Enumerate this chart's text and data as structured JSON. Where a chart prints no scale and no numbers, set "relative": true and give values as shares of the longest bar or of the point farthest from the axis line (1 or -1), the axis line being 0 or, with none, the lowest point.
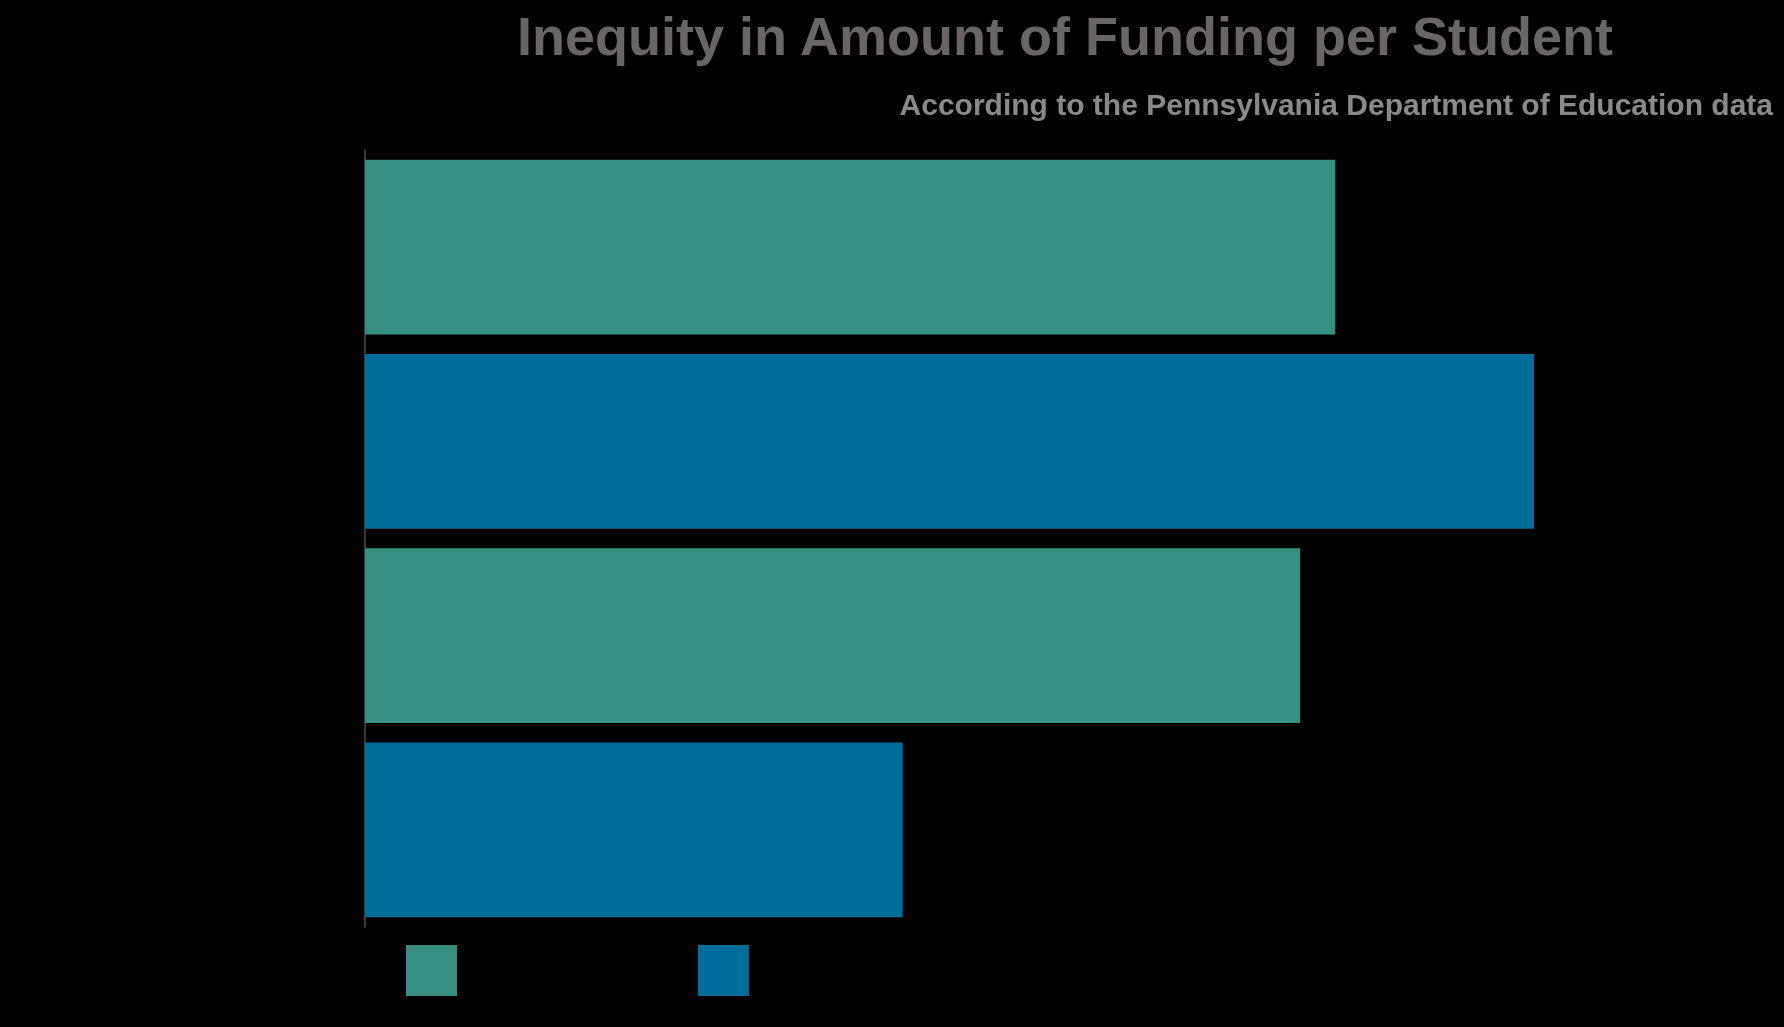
{
  "chart_data": {
    "type": "bar",
    "title": "Inequity in Amount of Funding per Student",
    "subtitle": "According to the Pennsylvania Department of Education data",
    "orientation": "horizontal",
    "relative": true,
    "categories": [
      null,
      null,
      null,
      null
    ],
    "values": [
      0.83,
      1,
      0.8,
      0.46
    ],
    "colors": [
      "#368f80",
      "#006d9a",
      "#368f80",
      "#006d9a"
    ]
  }
}
